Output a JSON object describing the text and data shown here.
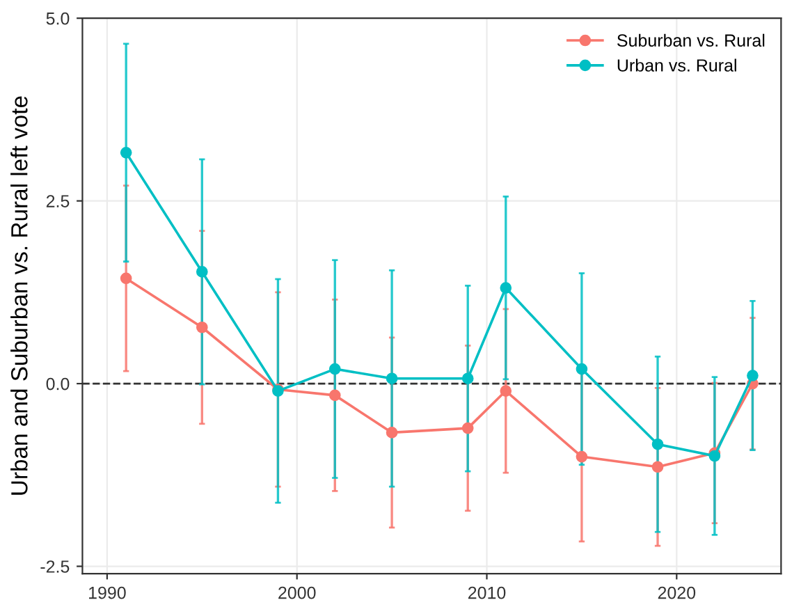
{
  "chart_data": {
    "type": "line",
    "ylabel": "Urban and Suburban vs. Rural left vote",
    "x": [
      1991,
      1995,
      1999,
      2002,
      2005,
      2009,
      2011,
      2015,
      2019,
      2022,
      2024
    ],
    "series": [
      {
        "name": "Suburban vs. Rural",
        "color": "#f8766d",
        "values": [
          1.44,
          0.77,
          -0.08,
          -0.16,
          -0.67,
          -0.61,
          -0.1,
          -1.0,
          -1.14,
          -0.95,
          0.0
        ],
        "errors": [
          1.27,
          1.32,
          1.33,
          1.31,
          1.3,
          1.13,
          1.12,
          1.16,
          1.08,
          0.96,
          0.9
        ]
      },
      {
        "name": "Urban vs. Rural",
        "color": "#00bfc4",
        "values": [
          3.16,
          1.53,
          -0.1,
          0.2,
          0.07,
          0.07,
          1.31,
          0.2,
          -0.83,
          -0.99,
          0.11
        ],
        "errors": [
          1.49,
          1.54,
          1.53,
          1.49,
          1.48,
          1.27,
          1.25,
          1.31,
          1.2,
          1.08,
          1.02
        ]
      }
    ],
    "xlim": [
      1988.7,
      2025.5
    ],
    "xticks": [
      1990,
      2000,
      2010,
      2020
    ],
    "ylim": [
      -2.6,
      5.0
    ],
    "yticks": [
      {
        "value": -2.5,
        "label": "-2.5"
      },
      {
        "value": 0,
        "label": "0.0"
      },
      {
        "value": 2.5,
        "label": "2.5"
      },
      {
        "value": 5.0,
        "label": "5.0"
      }
    ],
    "ref_lines": [
      {
        "axis": "y",
        "value": 0,
        "color": "#333333",
        "line_style": "dashed"
      }
    ],
    "grid": true,
    "legend": "top right",
    "marker": "circle",
    "line_style": "solid"
  }
}
